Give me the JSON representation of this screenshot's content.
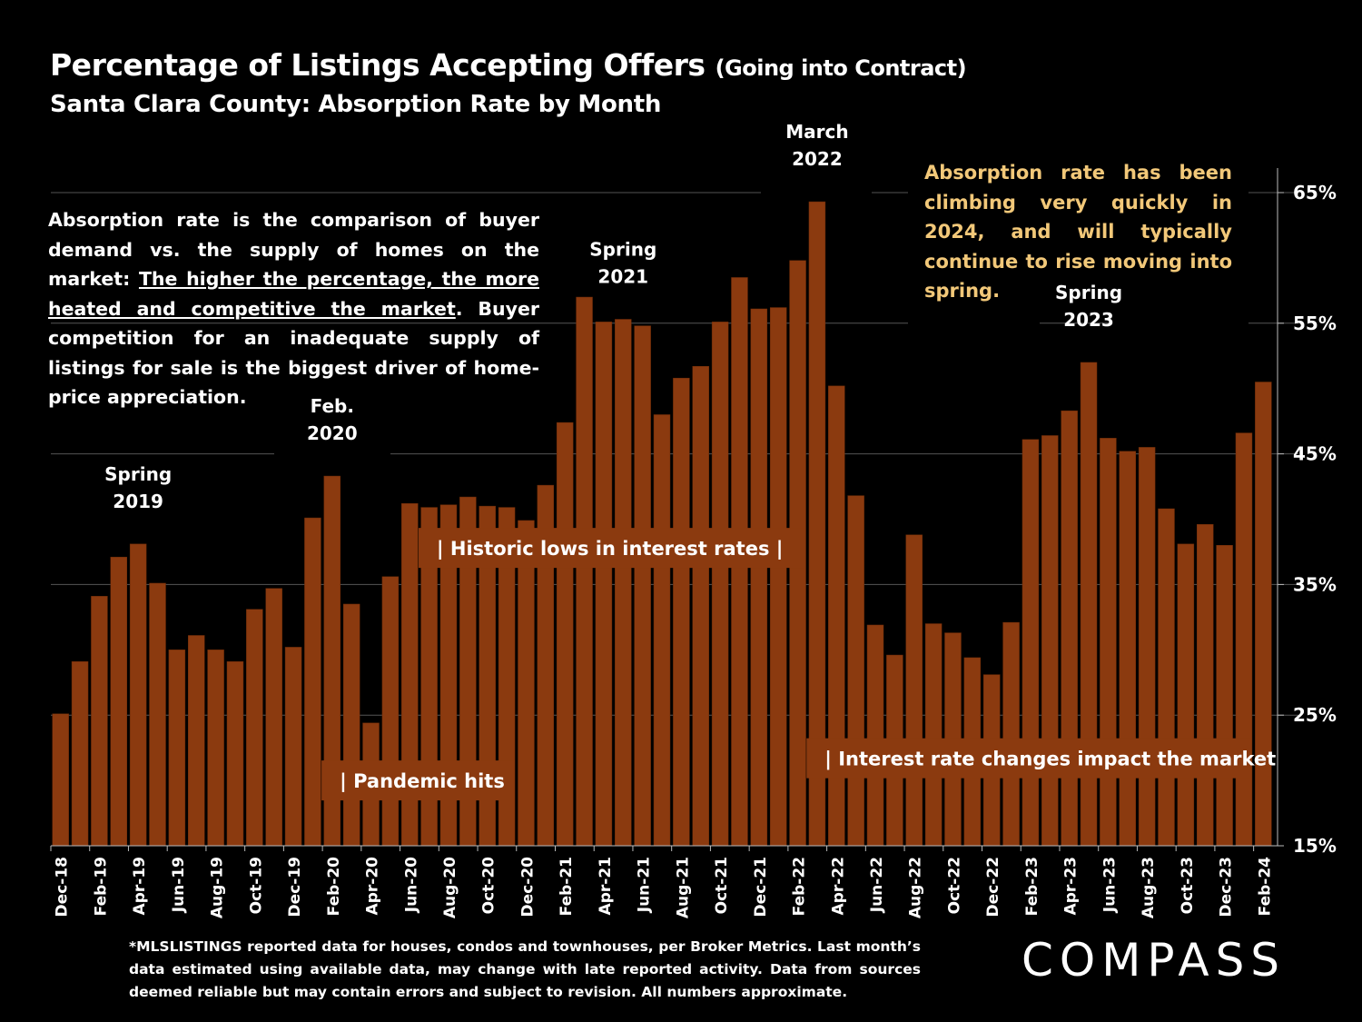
{
  "header": {
    "title_main": "Percentage of Listings Accepting Offers",
    "title_paren": "(Going into Contract)",
    "subtitle": "Santa Clara County:  Absorption Rate by Month"
  },
  "explanation": {
    "part1": "Absorption rate is the comparison of buyer demand vs. the supply of homes on the market: ",
    "underlined": "The higher the percentage, the more heated and competitive the market",
    "part2": ". Buyer competition for an inadequate supply of listings for sale is the biggest driver of home-price appreciation."
  },
  "callout": "Absorption rate has been climbing very quickly in 2024, and will typically continue to rise moving into spring.",
  "footnote": "*MLSLISTINGS reported data for houses, condos and townhouses, per Broker Metrics. Last month’s data estimated using available data, may change with late reported activity. Data from sources deemed reliable but may contain errors and subject to revision. All numbers approximate.",
  "logo": "COMPASS",
  "colors": {
    "background": "#000000",
    "bar": "#8B3A0F",
    "bar_edge": "#6e2c08",
    "callout_text": "#F2C879",
    "grid": "#555555",
    "annotation_box": "#8B3A0F"
  },
  "chart_data": {
    "type": "bar",
    "title": "Percentage of Listings Accepting Offers (Going into Contract)",
    "subtitle": "Santa Clara County:  Absorption Rate by Month",
    "ylabel": "",
    "xlabel": "",
    "ylim": [
      15,
      67.5
    ],
    "yticks": [
      15,
      25,
      35,
      45,
      55,
      65
    ],
    "ytick_labels": [
      "15%",
      "25%",
      "35%",
      "45%",
      "55%",
      "65%"
    ],
    "categories": [
      "Dec-18",
      "Jan-19",
      "Feb-19",
      "Mar-19",
      "Apr-19",
      "May-19",
      "Jun-19",
      "Jul-19",
      "Aug-19",
      "Sep-19",
      "Oct-19",
      "Nov-19",
      "Dec-19",
      "Jan-20",
      "Feb-20",
      "Mar-20",
      "Apr-20",
      "May-20",
      "Jun-20",
      "Jul-20",
      "Aug-20",
      "Sep-20",
      "Oct-20",
      "Nov-20",
      "Dec-20",
      "Jan-21",
      "Feb-21",
      "Mar-21",
      "Apr-21",
      "May-21",
      "Jun-21",
      "Jul-21",
      "Aug-21",
      "Sep-21",
      "Oct-21",
      "Nov-21",
      "Dec-21",
      "Jan-22",
      "Feb-22",
      "Mar-22",
      "Apr-22",
      "May-22",
      "Jun-22",
      "Jul-22",
      "Aug-22",
      "Sep-22",
      "Oct-22",
      "Nov-22",
      "Dec-22",
      "Jan-23",
      "Feb-23",
      "Mar-23",
      "Apr-23",
      "May-23",
      "Jun-23",
      "Jul-23",
      "Aug-23",
      "Sep-23",
      "Oct-23",
      "Nov-23",
      "Dec-23",
      "Jan-24",
      "Feb-24"
    ],
    "visible_tick_labels": [
      "Dec-18",
      "Feb-19",
      "Apr-19",
      "Jun-19",
      "Aug-19",
      "Oct-19",
      "Dec-19",
      "Feb-20",
      "Apr-20",
      "Jun-20",
      "Aug-20",
      "Oct-20",
      "Dec-20",
      "Feb-21",
      "Apr-21",
      "Jun-21",
      "Aug-21",
      "Oct-21",
      "Dec-21",
      "Feb-22",
      "Apr-22",
      "Jun-22",
      "Aug-22",
      "Oct-22",
      "Dec-22",
      "Feb-23",
      "Apr-23",
      "Jun-23",
      "Aug-23",
      "Oct-23",
      "Dec-23",
      "Feb-24"
    ],
    "values": [
      25.1,
      29.1,
      34.1,
      37.1,
      38.1,
      35.1,
      30.0,
      31.1,
      30.0,
      29.1,
      33.1,
      34.7,
      30.2,
      40.1,
      43.3,
      33.5,
      24.4,
      35.6,
      41.2,
      40.9,
      41.1,
      41.7,
      41.0,
      40.9,
      39.9,
      42.6,
      47.4,
      57.0,
      55.1,
      55.3,
      54.8,
      48.0,
      50.8,
      51.7,
      55.1,
      58.5,
      56.1,
      56.2,
      59.8,
      64.3,
      50.2,
      41.8,
      31.9,
      29.6,
      38.8,
      32.0,
      31.3,
      29.4,
      28.1,
      32.1,
      46.1,
      46.4,
      48.3,
      52.0,
      46.2,
      45.2,
      45.5,
      40.8,
      38.1,
      39.6,
      38.0,
      46.6,
      50.5
    ],
    "period_labels": [
      {
        "line1": "Spring",
        "line2": "2019",
        "index": 4
      },
      {
        "line1": "Feb.",
        "line2": "2020",
        "index": 14
      },
      {
        "line1": "Spring",
        "line2": "2021",
        "index": 29
      },
      {
        "line1": "March",
        "line2": "2022",
        "index": 39
      },
      {
        "line1": "Spring",
        "line2": "2023",
        "index": 53
      }
    ],
    "event_boxes": [
      {
        "text": "| Pandemic hits",
        "from_index": 14,
        "to_index": 23,
        "value": 20
      },
      {
        "text": "|   Historic lows in interest rates   |",
        "from_index": 19,
        "to_index": 38,
        "value": 37.8
      },
      {
        "text": "| Interest rate changes impact the market",
        "from_index": 39,
        "to_index": 61,
        "value": 21.7
      }
    ]
  }
}
